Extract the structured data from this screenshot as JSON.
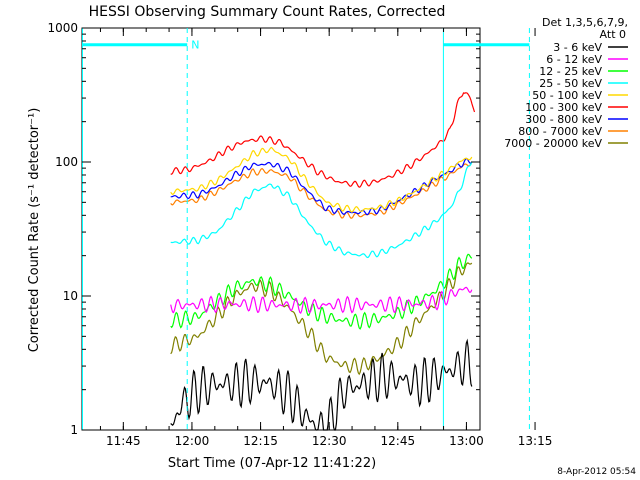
{
  "chart_data": {
    "type": "line",
    "title": "HESSI Observing Summary Count Rates, Corrected",
    "xlabel": "Start Time (07-Apr-12 11:41:22)",
    "ylabel": "Corrected Count Rate (s⁻¹ detector⁻¹)",
    "y_scale": "log",
    "ylim": [
      1,
      1000
    ],
    "xlim_minutes_after_start": [
      -5.4,
      81.6
    ],
    "x_tick_labels": [
      "11:45",
      "12:00",
      "12:15",
      "12:30",
      "12:45",
      "13:00",
      "13:15"
    ],
    "x_tick_minutes": [
      3.6333,
      18.6333,
      33.6333,
      48.6333,
      63.6333,
      78.6333,
      93.6333
    ],
    "y_tick_labels": [
      "1",
      "10",
      "100",
      "1000"
    ],
    "y_tick_values": [
      1,
      10,
      100,
      1000
    ],
    "legend_title": [
      "Det 1,3,5,6,7,9,",
      "Att 0"
    ],
    "legend_position": "right",
    "annotation_N": "N",
    "footer_date": "8-Apr-2012 05:54",
    "series": [
      {
        "name": "3 - 6 keV",
        "color": "#000000",
        "x": [
          14,
          16,
          20,
          24,
          28,
          32,
          36,
          40,
          44,
          48,
          52,
          56,
          60,
          64,
          68,
          72,
          75,
          77,
          80
        ],
        "y": [
          1,
          1.5,
          2,
          2.2,
          2.2,
          2.3,
          2.2,
          1.8,
          1.2,
          1,
          2,
          2.2,
          2.5,
          2.4,
          2.2,
          2.5,
          2.8,
          3,
          3.2
        ]
      },
      {
        "name": "6 - 12 keV",
        "color": "#ff00ff",
        "x": [
          14,
          20,
          28,
          36,
          44,
          52,
          60,
          68,
          72,
          75,
          77,
          80
        ],
        "y": [
          8.5,
          8.6,
          8.7,
          8.6,
          8.5,
          8.6,
          8.6,
          8.7,
          9,
          10,
          11,
          11.5
        ]
      },
      {
        "name": "12 - 25 keV",
        "color": "#00ff00",
        "x": [
          14,
          20,
          24,
          28,
          32,
          36,
          40,
          44,
          48,
          52,
          56,
          60,
          64,
          68,
          72,
          75,
          77,
          80
        ],
        "y": [
          6.5,
          7,
          9,
          11.5,
          13,
          12,
          10,
          8,
          7,
          6.5,
          6.5,
          6.8,
          7.5,
          9,
          11,
          14,
          17,
          20
        ]
      },
      {
        "name": "25 - 50 keV",
        "color": "#00ffff",
        "x": [
          14,
          20,
          24,
          28,
          32,
          36,
          40,
          44,
          48,
          52,
          56,
          60,
          64,
          68,
          72,
          75,
          77,
          79,
          80
        ],
        "y": [
          25,
          26,
          30,
          42,
          60,
          68,
          55,
          35,
          25,
          21,
          20,
          21,
          24,
          29,
          36,
          45,
          60,
          90,
          110
        ]
      },
      {
        "name": "50 - 100 keV",
        "color": "#ffd800",
        "x": [
          14,
          20,
          24,
          28,
          32,
          36,
          40,
          44,
          48,
          52,
          56,
          60,
          64,
          68,
          72,
          75,
          77,
          80
        ],
        "y": [
          60,
          63,
          72,
          90,
          115,
          125,
          105,
          70,
          50,
          45,
          44,
          46,
          52,
          62,
          76,
          88,
          100,
          110
        ]
      },
      {
        "name": "100 - 300 keV",
        "color": "#ff0000",
        "x": [
          14,
          18,
          22,
          26,
          30,
          34,
          38,
          42,
          46,
          50,
          54,
          58,
          62,
          66,
          70,
          73,
          75,
          76.5,
          78,
          79.5,
          80.5
        ],
        "y": [
          85,
          88,
          100,
          122,
          142,
          150,
          140,
          110,
          85,
          72,
          68,
          70,
          78,
          92,
          115,
          140,
          170,
          260,
          340,
          300,
          230
        ]
      },
      {
        "name": "300 - 800 keV",
        "color": "#0000ff",
        "x": [
          14,
          20,
          24,
          28,
          32,
          36,
          40,
          44,
          48,
          52,
          56,
          60,
          64,
          68,
          72,
          75,
          77,
          80
        ],
        "y": [
          55,
          57,
          65,
          80,
          95,
          97,
          85,
          60,
          45,
          42,
          42,
          44,
          52,
          62,
          75,
          85,
          95,
          105
        ]
      },
      {
        "name": "800 - 7000 keV",
        "color": "#ff8000",
        "x": [
          14,
          20,
          24,
          28,
          32,
          36,
          40,
          44,
          48,
          52,
          56,
          60,
          64,
          68,
          72,
          75,
          77,
          80
        ],
        "y": [
          50,
          52,
          60,
          72,
          84,
          86,
          77,
          56,
          43,
          40,
          40,
          42,
          49,
          58,
          70,
          80,
          90,
          100
        ]
      },
      {
        "name": "7000 - 20000 keV",
        "color": "#808000",
        "x": [
          14,
          20,
          24,
          28,
          32,
          36,
          40,
          44,
          48,
          52,
          56,
          60,
          64,
          68,
          72,
          75,
          77,
          80
        ],
        "y": [
          4.2,
          5,
          7,
          10,
          12,
          11,
          8,
          5.5,
          3.5,
          3,
          3,
          3.5,
          4.5,
          6.5,
          9,
          12,
          15,
          18
        ]
      }
    ],
    "cyan_bars": [
      {
        "x": [
          -5.4,
          17.6
        ],
        "y": 750
      },
      {
        "x": [
          73.6,
          92.4
        ],
        "y": 750
      }
    ],
    "cyan_dashed_lines_x": [
      17.6,
      92.4
    ],
    "cyan_solid_lines_x": [
      73.6
    ]
  }
}
